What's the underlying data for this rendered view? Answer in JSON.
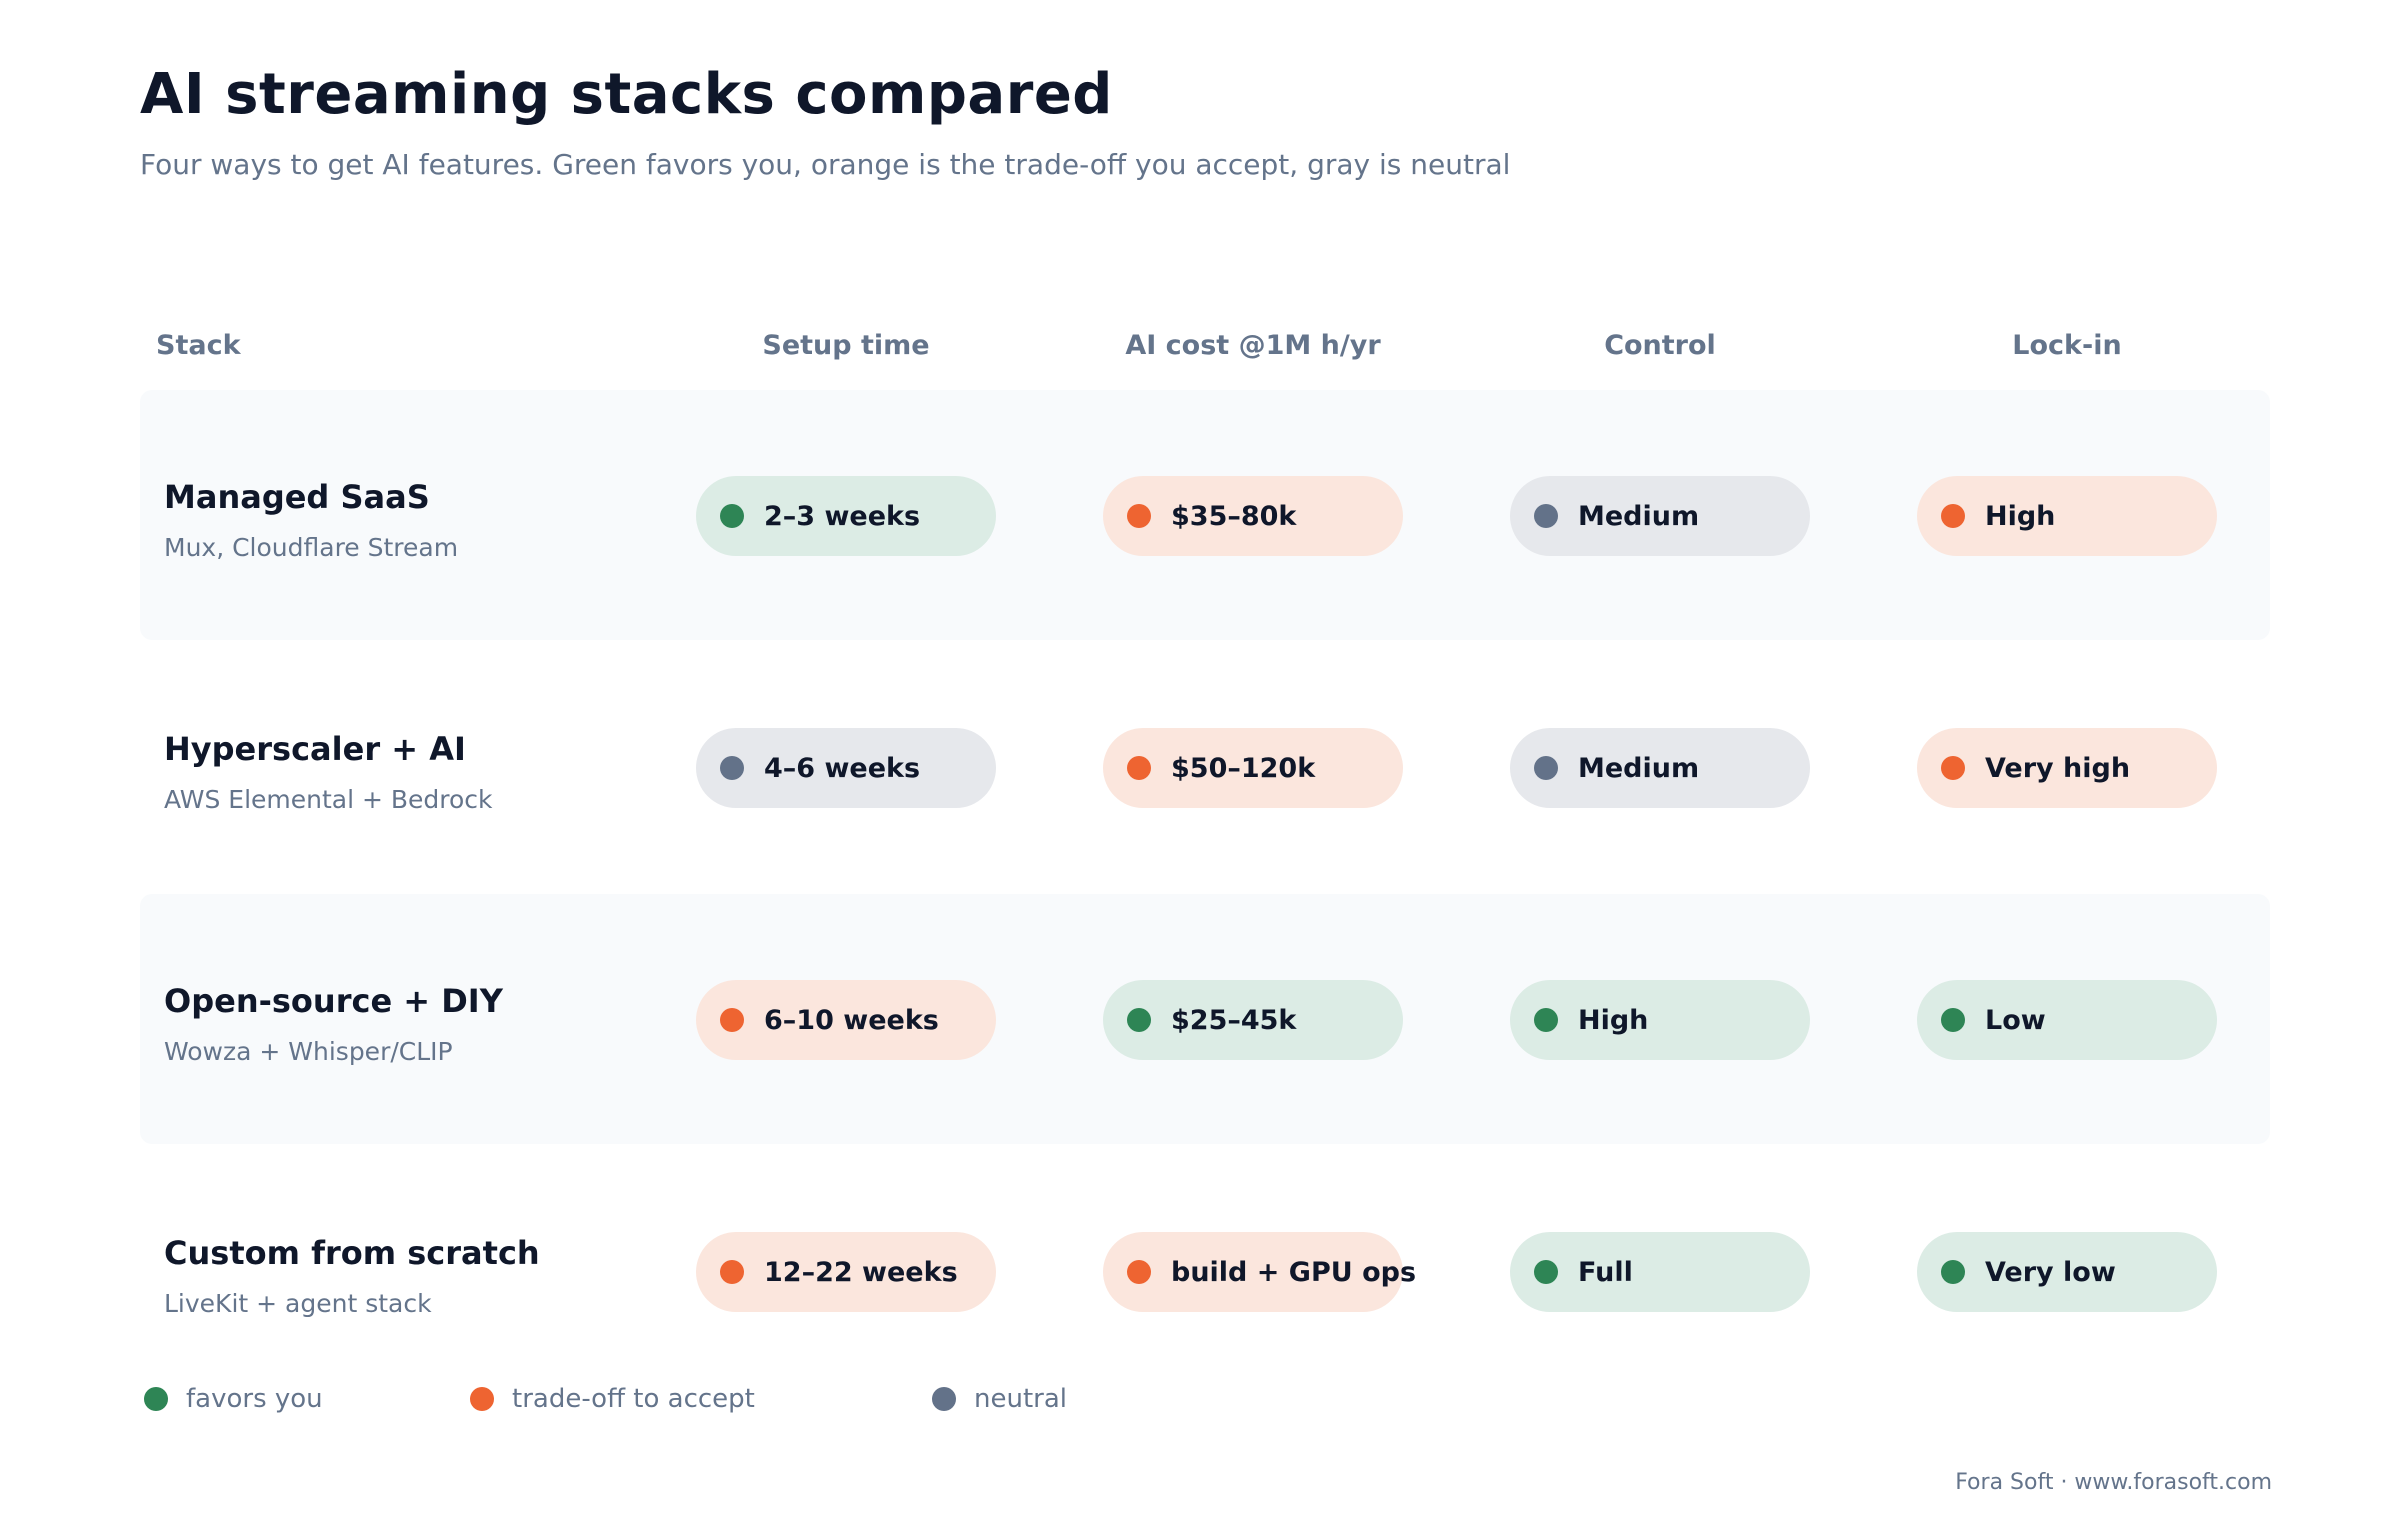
{
  "title": "AI streaming stacks compared",
  "subtitle": "Four ways to get AI features. Green favors you, orange is the trade-off you accept, gray is neutral",
  "columns": {
    "stack": "Stack",
    "setup": "Setup time",
    "cost": "AI cost @1M h/yr",
    "control": "Control",
    "lockin": "Lock-in"
  },
  "colors": {
    "favors": "#2e8555",
    "tradeoff": "#ee6431",
    "neutral": "#637289"
  },
  "rows": [
    {
      "name": "Managed SaaS",
      "sub": "Mux, Cloudflare Stream",
      "setup": {
        "label": "2–3 weeks",
        "tone": "green"
      },
      "cost": {
        "label": "$35–80k",
        "tone": "orange"
      },
      "control": {
        "label": "Medium",
        "tone": "gray"
      },
      "lockin": {
        "label": "High",
        "tone": "orange"
      }
    },
    {
      "name": "Hyperscaler + AI",
      "sub": "AWS Elemental + Bedrock",
      "setup": {
        "label": "4–6 weeks",
        "tone": "gray"
      },
      "cost": {
        "label": "$50–120k",
        "tone": "orange"
      },
      "control": {
        "label": "Medium",
        "tone": "gray"
      },
      "lockin": {
        "label": "Very high",
        "tone": "orange"
      }
    },
    {
      "name": "Open-source + DIY",
      "sub": "Wowza + Whisper/CLIP",
      "setup": {
        "label": "6–10 weeks",
        "tone": "orange"
      },
      "cost": {
        "label": "$25–45k",
        "tone": "green"
      },
      "control": {
        "label": "High",
        "tone": "green"
      },
      "lockin": {
        "label": "Low",
        "tone": "green"
      }
    },
    {
      "name": "Custom from scratch",
      "sub": "LiveKit + agent stack",
      "setup": {
        "label": "12–22 weeks",
        "tone": "orange"
      },
      "cost": {
        "label": "build + GPU ops",
        "tone": "orange"
      },
      "control": {
        "label": "Full",
        "tone": "green"
      },
      "lockin": {
        "label": "Very low",
        "tone": "green"
      }
    }
  ],
  "legend": {
    "favors": "favors you",
    "tradeoff": "trade-off to accept",
    "neutral": "neutral"
  },
  "footer": "Fora Soft · www.forasoft.com"
}
